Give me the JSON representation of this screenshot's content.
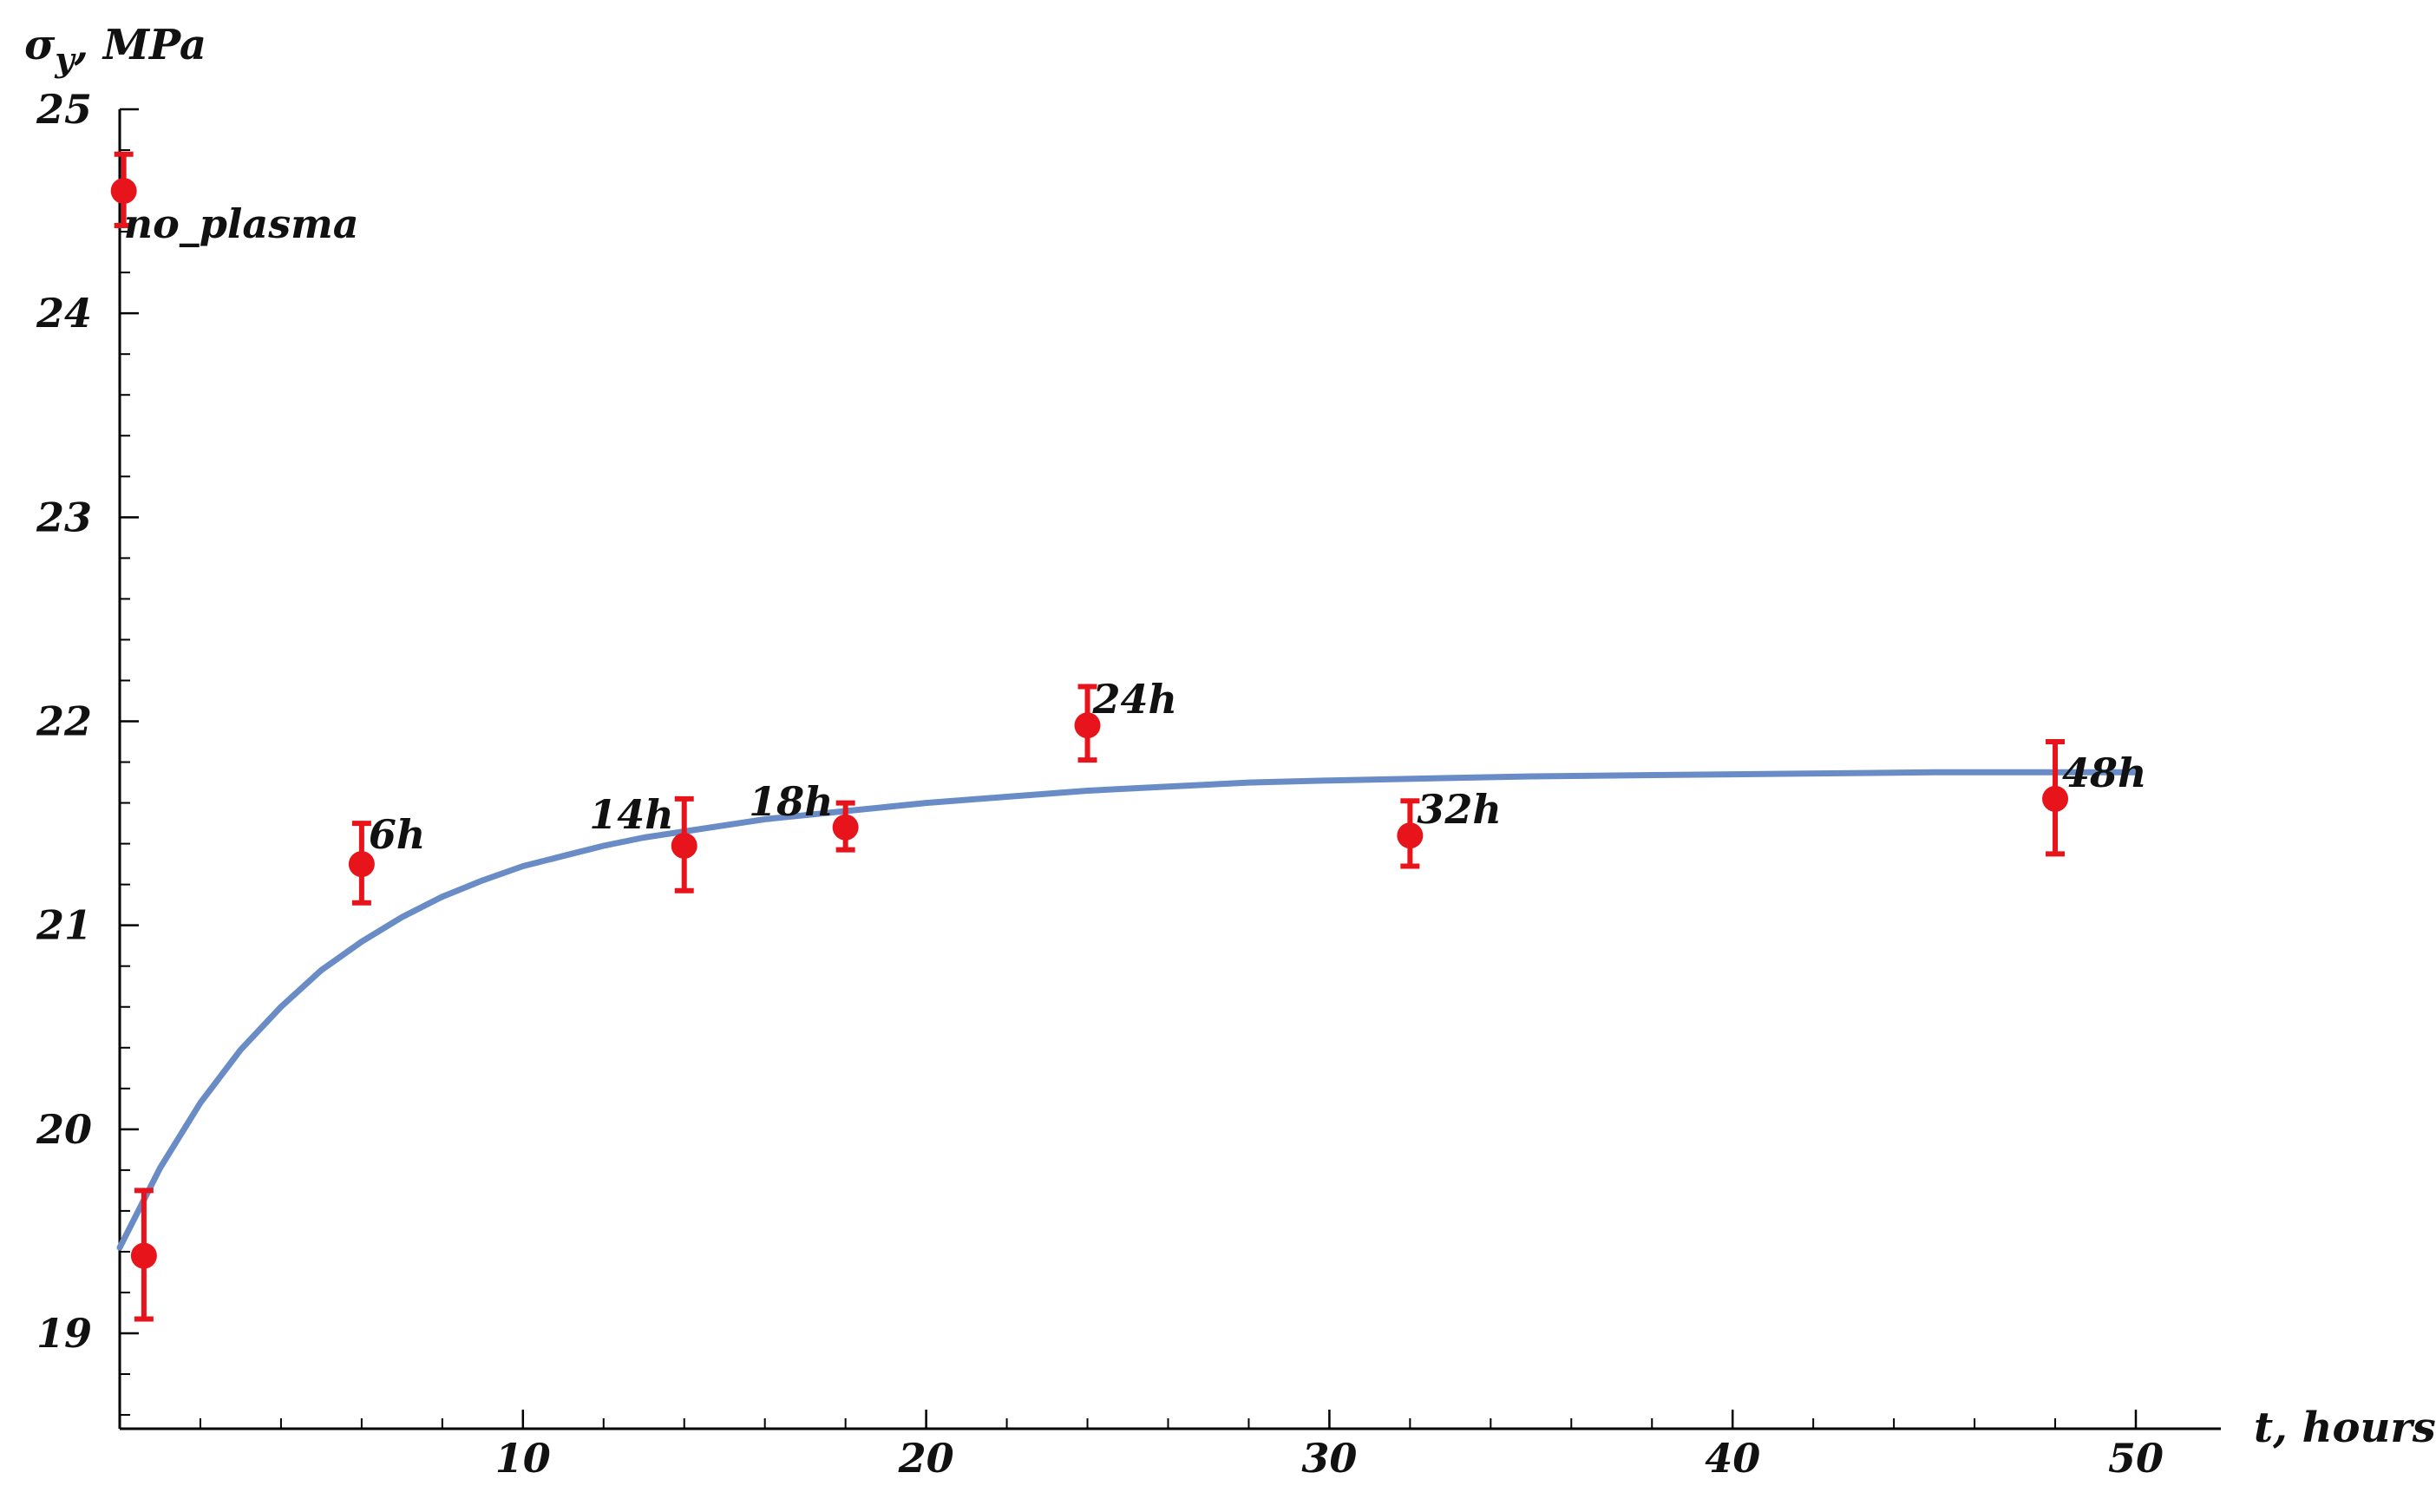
{
  "colors": {
    "points": "#e8141b",
    "fit": "#6a8cc6",
    "axes": "#000000"
  },
  "chart_data": {
    "type": "scatter",
    "title": "",
    "xlabel": "t, hours",
    "ylabel_symbol": "σ",
    "ylabel_subscript": "y",
    "ylabel_unit": ", MPa",
    "xlim": [
      0,
      52
    ],
    "ylim": [
      18.5,
      25
    ],
    "xticks": [
      10,
      20,
      30,
      40,
      50
    ],
    "yticks": [
      19,
      20,
      21,
      22,
      23,
      24,
      25
    ],
    "grid": false,
    "series": [
      {
        "type": "scatter_errorbar",
        "points": [
          {
            "x": 0.1,
            "y": 24.6,
            "err_low": 24.43,
            "err_high": 24.78,
            "label": "no_plasma"
          },
          {
            "x": 0.6,
            "y": 19.38,
            "err_low": 19.07,
            "err_high": 19.7,
            "label": ""
          },
          {
            "x": 6,
            "y": 21.3,
            "err_low": 21.11,
            "err_high": 21.5,
            "label": "6h"
          },
          {
            "x": 14,
            "y": 21.39,
            "err_low": 21.17,
            "err_high": 21.62,
            "label": "14h"
          },
          {
            "x": 18,
            "y": 21.48,
            "err_low": 21.37,
            "err_high": 21.6,
            "label": "18h"
          },
          {
            "x": 24,
            "y": 21.98,
            "err_low": 21.81,
            "err_high": 22.17,
            "label": "24h"
          },
          {
            "x": 32,
            "y": 21.44,
            "err_low": 21.29,
            "err_high": 21.61,
            "label": "32h"
          },
          {
            "x": 48,
            "y": 21.62,
            "err_low": 21.35,
            "err_high": 21.9,
            "label": "48h"
          }
        ]
      },
      {
        "type": "line",
        "x": [
          0,
          1,
          2,
          3,
          4,
          5,
          6,
          7,
          8,
          9,
          10,
          11,
          12,
          13,
          14,
          15,
          16,
          17,
          18,
          20,
          22,
          24,
          26,
          28,
          30,
          35,
          40,
          45,
          50
        ],
        "y": [
          19.42,
          19.81,
          20.13,
          20.39,
          20.6,
          20.78,
          20.92,
          21.04,
          21.14,
          21.22,
          21.29,
          21.34,
          21.39,
          21.43,
          21.46,
          21.49,
          21.52,
          21.54,
          21.56,
          21.6,
          21.63,
          21.66,
          21.68,
          21.7,
          21.71,
          21.73,
          21.74,
          21.75,
          21.75
        ]
      }
    ]
  }
}
